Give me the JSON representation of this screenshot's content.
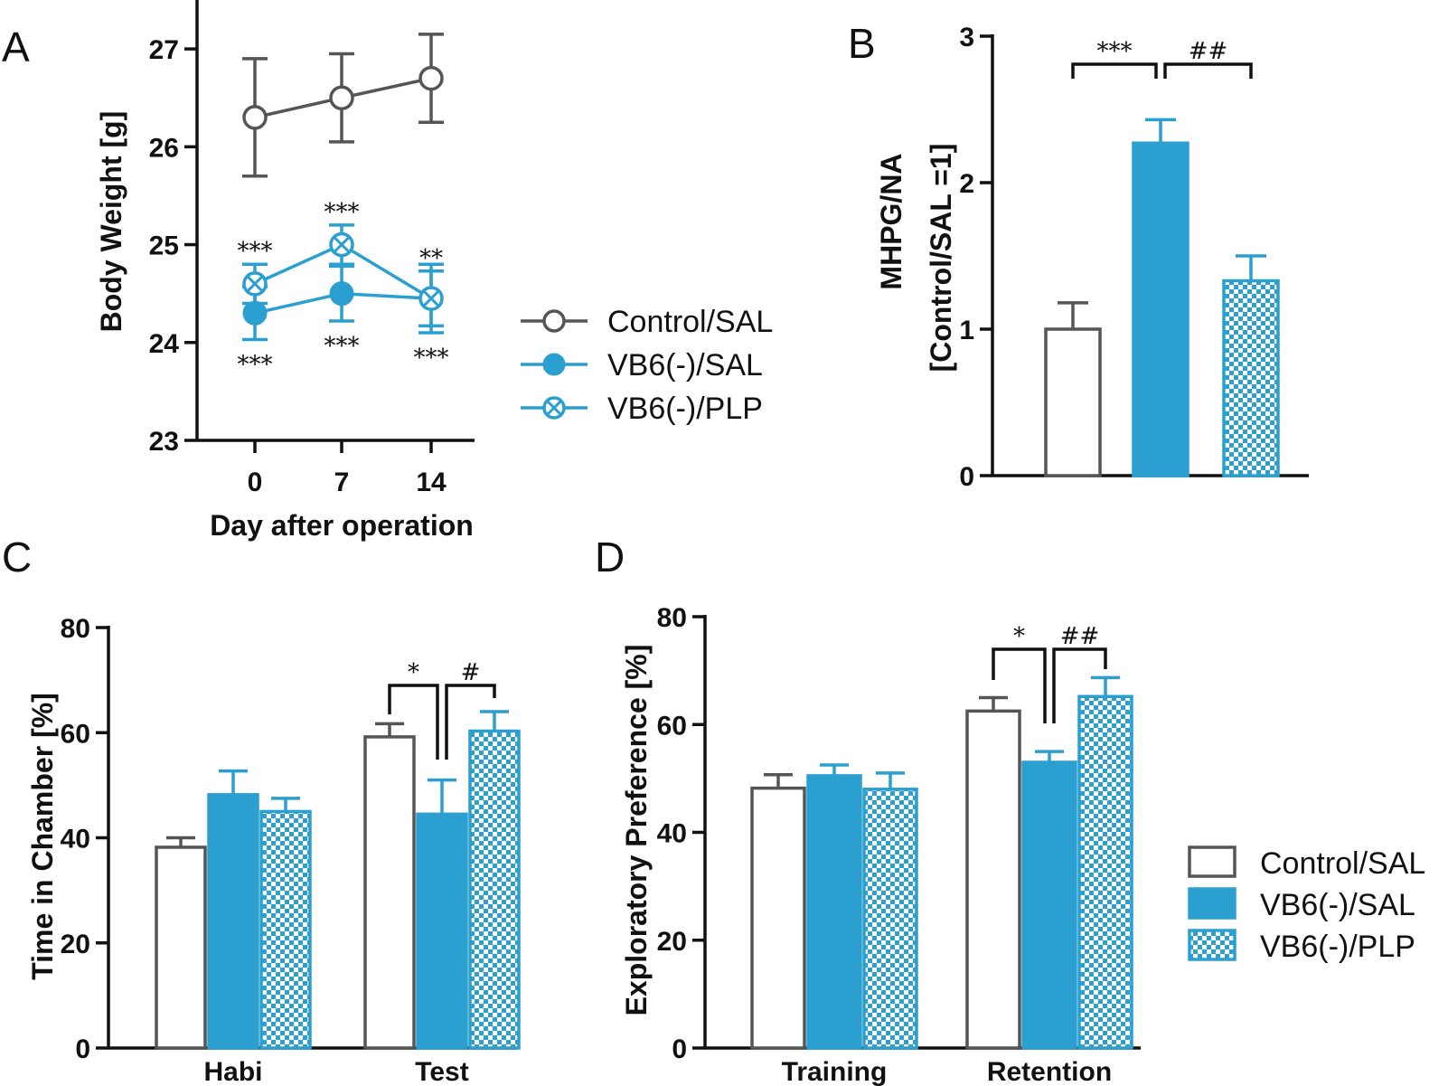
{
  "colors": {
    "control": "#555555",
    "vb6": "#2b9fd0",
    "text": "#111111"
  },
  "chart_data": [
    {
      "panel": "A",
      "type": "line",
      "xlabel": "Day after operation",
      "ylabel": "Body Weight [g]",
      "ylim": [
        23,
        27.5
      ],
      "yticks": [
        23,
        24,
        25,
        26,
        27
      ],
      "categories": [
        "0",
        "7",
        "14"
      ],
      "series": [
        {
          "name": "Control/SAL",
          "marker": "open",
          "values": [
            26.3,
            26.5,
            26.7
          ],
          "errors": [
            0.6,
            0.45,
            0.45
          ]
        },
        {
          "name": "VB6(-)/SAL",
          "marker": "filled",
          "values": [
            24.3,
            24.5,
            24.45
          ],
          "errors": [
            0.27,
            0.28,
            0.35
          ]
        },
        {
          "name": "VB6(-)/PLP",
          "marker": "cross",
          "values": [
            24.6,
            25.0,
            24.45
          ],
          "errors": [
            0.2,
            0.2,
            0.28
          ]
        }
      ],
      "annotations": [
        {
          "series": 2,
          "index": 0,
          "pos": "above",
          "text": "***"
        },
        {
          "series": 2,
          "index": 1,
          "pos": "above",
          "text": "***"
        },
        {
          "series": 2,
          "index": 2,
          "pos": "above",
          "text": "**"
        },
        {
          "series": 1,
          "index": 0,
          "pos": "below",
          "text": "***"
        },
        {
          "series": 1,
          "index": 1,
          "pos": "below",
          "text": "***"
        },
        {
          "series": 1,
          "index": 2,
          "pos": "below",
          "text": "***"
        }
      ]
    },
    {
      "panel": "B",
      "type": "bar",
      "ylabel": "MHPG/NA\n[Control/SAL =1]",
      "ylim": [
        0,
        3
      ],
      "yticks": [
        0,
        1,
        2,
        3
      ],
      "series": [
        {
          "name": "Control/SAL",
          "values": [
            1.0
          ],
          "errors": [
            0.18
          ]
        },
        {
          "name": "VB6(-)/SAL",
          "values": [
            2.27
          ],
          "errors": [
            0.16
          ]
        },
        {
          "name": "VB6(-)/PLP",
          "values": [
            1.33
          ],
          "errors": [
            0.17
          ]
        }
      ],
      "significance": [
        {
          "from": 0,
          "to": 1,
          "text": "***"
        },
        {
          "from": 1,
          "to": 2,
          "text": "##"
        }
      ]
    },
    {
      "panel": "C",
      "type": "bar",
      "ylabel": "Time in Chamber [%]",
      "ylim": [
        0,
        80
      ],
      "yticks": [
        0,
        20,
        40,
        60,
        80
      ],
      "categories": [
        "Habi",
        "Test"
      ],
      "series": [
        {
          "name": "Control/SAL",
          "values": [
            38.2,
            59.2
          ],
          "errors": [
            1.8,
            2.5
          ]
        },
        {
          "name": "VB6(-)/SAL",
          "values": [
            48.2,
            44.5
          ],
          "errors": [
            4.5,
            6.5
          ]
        },
        {
          "name": "VB6(-)/PLP",
          "values": [
            45.0,
            60.3
          ],
          "errors": [
            2.5,
            3.7
          ]
        }
      ],
      "significance": [
        {
          "category": 1,
          "from": 0,
          "to": 1,
          "text": "*"
        },
        {
          "category": 1,
          "from": 1,
          "to": 2,
          "text": "#"
        }
      ]
    },
    {
      "panel": "D",
      "type": "bar",
      "ylabel": "Exploratory Preference [%]",
      "ylim": [
        0,
        80
      ],
      "yticks": [
        0,
        20,
        40,
        60,
        80
      ],
      "categories": [
        "Training",
        "Retention"
      ],
      "series": [
        {
          "name": "Control/SAL",
          "values": [
            48.2,
            62.5
          ],
          "errors": [
            2.5,
            2.5
          ]
        },
        {
          "name": "VB6(-)/SAL",
          "values": [
            50.5,
            53.0
          ],
          "errors": [
            2.0,
            2.0
          ]
        },
        {
          "name": "VB6(-)/PLP",
          "values": [
            48.0,
            65.2
          ],
          "errors": [
            3.0,
            3.5
          ]
        }
      ],
      "significance": [
        {
          "category": 1,
          "from": 0,
          "to": 1,
          "text": "*"
        },
        {
          "category": 1,
          "from": 1,
          "to": 2,
          "text": "##"
        }
      ]
    }
  ],
  "legend_line": [
    "Control/SAL",
    "VB6(-)/SAL",
    "VB6(-)/PLP"
  ],
  "legend_bar": [
    "Control/SAL",
    "VB6(-)/SAL",
    "VB6(-)/PLP"
  ]
}
